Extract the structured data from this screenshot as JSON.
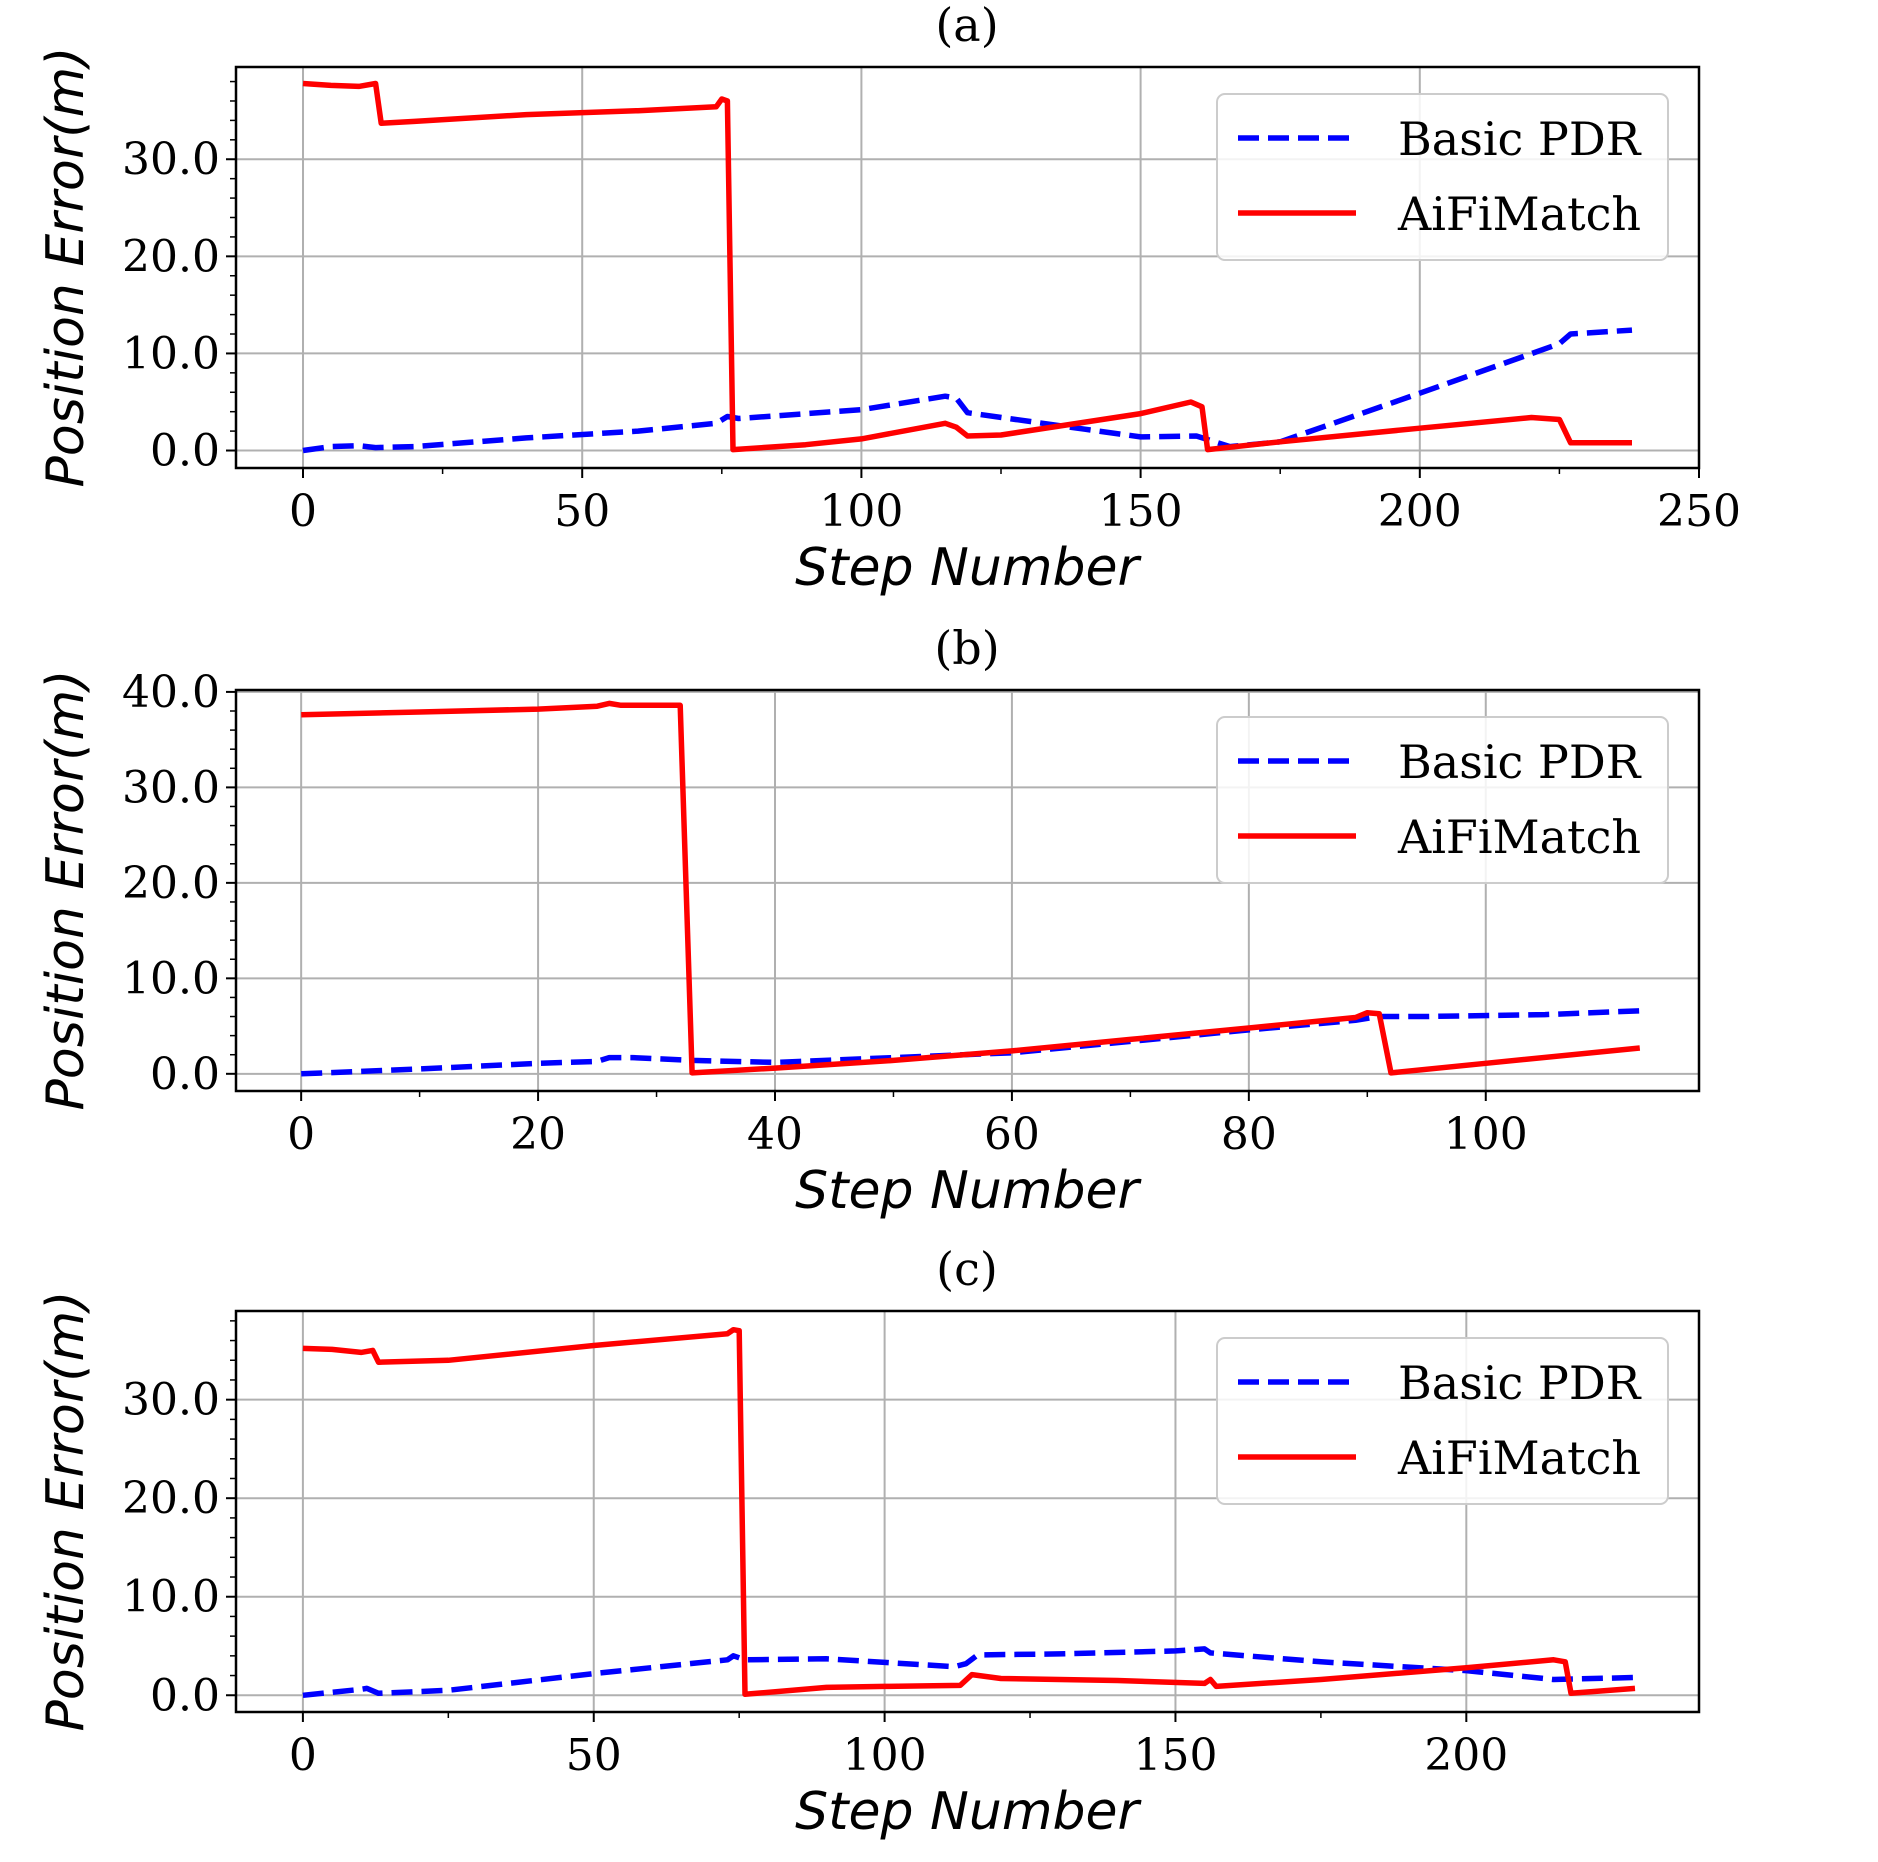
{
  "chart_data": [
    {
      "type": "line",
      "title": "(a)",
      "xlabel": "Step Number",
      "ylabel": "Position Error(m)",
      "xlim": [
        -12,
        250
      ],
      "ylim": [
        -1.8,
        39.5
      ],
      "xticks": [
        0,
        50,
        100,
        150,
        200,
        250
      ],
      "xtick_labels": [
        "0",
        "50",
        "100",
        "150",
        "200",
        "250"
      ],
      "yticks": [
        0,
        10,
        20,
        30
      ],
      "ytick_labels": [
        "0.0",
        "10.0",
        "20.0",
        "30.0"
      ],
      "grid": true,
      "legend_position": "upper-right",
      "series": [
        {
          "name": "Basic PDR",
          "color": "#0000ff",
          "style": "dashed",
          "points": [
            [
              0,
              0.0
            ],
            [
              5,
              0.4
            ],
            [
              10,
              0.5
            ],
            [
              13,
              0.3
            ],
            [
              20,
              0.4
            ],
            [
              40,
              1.3
            ],
            [
              60,
              2.0
            ],
            [
              74,
              2.8
            ],
            [
              76,
              3.5
            ],
            [
              78,
              3.3
            ],
            [
              100,
              4.2
            ],
            [
              115,
              5.6
            ],
            [
              117,
              5.4
            ],
            [
              119,
              3.9
            ],
            [
              140,
              2.2
            ],
            [
              150,
              1.4
            ],
            [
              160,
              1.5
            ],
            [
              166,
              0.4
            ],
            [
              175,
              0.9
            ],
            [
              200,
              5.9
            ],
            [
              225,
              11.0
            ],
            [
              227,
              12.0
            ],
            [
              238,
              12.4
            ]
          ]
        },
        {
          "name": "AiFiMatch",
          "color": "#ff0000",
          "style": "solid",
          "points": [
            [
              0,
              37.8
            ],
            [
              5,
              37.6
            ],
            [
              10,
              37.5
            ],
            [
              13,
              37.8
            ],
            [
              14,
              33.7
            ],
            [
              20,
              33.9
            ],
            [
              40,
              34.6
            ],
            [
              60,
              35.0
            ],
            [
              74,
              35.4
            ],
            [
              75,
              36.2
            ],
            [
              76,
              36.0
            ],
            [
              77,
              0.1
            ],
            [
              90,
              0.6
            ],
            [
              100,
              1.2
            ],
            [
              115,
              2.8
            ],
            [
              117,
              2.4
            ],
            [
              119,
              1.5
            ],
            [
              125,
              1.6
            ],
            [
              150,
              3.8
            ],
            [
              159,
              5.0
            ],
            [
              161,
              4.5
            ],
            [
              162,
              0.1
            ],
            [
              175,
              0.9
            ],
            [
              200,
              2.3
            ],
            [
              220,
              3.4
            ],
            [
              225,
              3.2
            ],
            [
              227,
              0.8
            ],
            [
              238,
              0.8
            ]
          ]
        }
      ]
    },
    {
      "type": "line",
      "title": "(b)",
      "xlabel": "Step Number",
      "ylabel": "Position Error(m)",
      "xlim": [
        -5.5,
        118
      ],
      "ylim": [
        -1.8,
        40.2
      ],
      "xticks": [
        0,
        20,
        40,
        60,
        80,
        100
      ],
      "xtick_labels": [
        "0",
        "20",
        "40",
        "60",
        "80",
        "100"
      ],
      "yticks": [
        0,
        10,
        20,
        30,
        40
      ],
      "ytick_labels": [
        "0.0",
        "10.0",
        "20.0",
        "30.0",
        "40.0"
      ],
      "grid": true,
      "legend_position": "upper-right",
      "series": [
        {
          "name": "Basic PDR",
          "color": "#0000ff",
          "style": "dashed",
          "points": [
            [
              0,
              0.0
            ],
            [
              10,
              0.5
            ],
            [
              20,
              1.1
            ],
            [
              25,
              1.3
            ],
            [
              26,
              1.7
            ],
            [
              28,
              1.7
            ],
            [
              33,
              1.4
            ],
            [
              40,
              1.2
            ],
            [
              50,
              1.7
            ],
            [
              60,
              2.2
            ],
            [
              70,
              3.4
            ],
            [
              80,
              4.6
            ],
            [
              89,
              5.6
            ],
            [
              91,
              6.0
            ],
            [
              95,
              6.0
            ],
            [
              105,
              6.2
            ],
            [
              113,
              6.6
            ]
          ]
        },
        {
          "name": "AiFiMatch",
          "color": "#ff0000",
          "style": "solid",
          "points": [
            [
              0,
              37.6
            ],
            [
              10,
              37.9
            ],
            [
              20,
              38.2
            ],
            [
              25,
              38.5
            ],
            [
              26,
              38.8
            ],
            [
              27,
              38.6
            ],
            [
              32,
              38.6
            ],
            [
              33,
              0.1
            ],
            [
              40,
              0.6
            ],
            [
              50,
              1.4
            ],
            [
              60,
              2.4
            ],
            [
              70,
              3.6
            ],
            [
              80,
              4.8
            ],
            [
              89,
              5.9
            ],
            [
              90,
              6.4
            ],
            [
              91,
              6.3
            ],
            [
              92,
              0.1
            ],
            [
              100,
              1.1
            ],
            [
              113,
              2.7
            ]
          ]
        }
      ]
    },
    {
      "type": "line",
      "title": "(c)",
      "xlabel": "Step Number",
      "ylabel": "Position Error(m)",
      "xlim": [
        -11.5,
        240
      ],
      "ylim": [
        -1.7,
        39.0
      ],
      "xticks": [
        0,
        50,
        100,
        150,
        200
      ],
      "xtick_labels": [
        "0",
        "50",
        "100",
        "150",
        "200"
      ],
      "yticks": [
        0,
        10,
        20,
        30
      ],
      "ytick_labels": [
        "0.0",
        "10.0",
        "20.0",
        "30.0"
      ],
      "grid": true,
      "legend_position": "upper-right",
      "series": [
        {
          "name": "Basic PDR",
          "color": "#0000ff",
          "style": "dashed",
          "points": [
            [
              0,
              0.0
            ],
            [
              10,
              0.6
            ],
            [
              11,
              0.7
            ],
            [
              13,
              0.2
            ],
            [
              25,
              0.5
            ],
            [
              50,
              2.2
            ],
            [
              73,
              3.6
            ],
            [
              74,
              4.0
            ],
            [
              76,
              3.6
            ],
            [
              90,
              3.7
            ],
            [
              112,
              2.9
            ],
            [
              114,
              3.2
            ],
            [
              116,
              4.1
            ],
            [
              130,
              4.2
            ],
            [
              150,
              4.5
            ],
            [
              155,
              4.7
            ],
            [
              156,
              4.3
            ],
            [
              175,
              3.4
            ],
            [
              200,
              2.5
            ],
            [
              215,
              1.6
            ],
            [
              229,
              1.8
            ]
          ]
        },
        {
          "name": "AiFiMatch",
          "color": "#ff0000",
          "style": "solid",
          "points": [
            [
              0,
              35.2
            ],
            [
              5,
              35.1
            ],
            [
              10,
              34.8
            ],
            [
              12,
              35.0
            ],
            [
              13,
              33.8
            ],
            [
              25,
              34.0
            ],
            [
              50,
              35.5
            ],
            [
              73,
              36.7
            ],
            [
              74,
              37.1
            ],
            [
              75,
              37.0
            ],
            [
              76,
              0.1
            ],
            [
              90,
              0.8
            ],
            [
              100,
              0.9
            ],
            [
              113,
              1.0
            ],
            [
              115,
              2.1
            ],
            [
              120,
              1.7
            ],
            [
              140,
              1.5
            ],
            [
              155,
              1.2
            ],
            [
              156,
              1.6
            ],
            [
              157,
              0.9
            ],
            [
              175,
              1.6
            ],
            [
              200,
              2.8
            ],
            [
              215,
              3.6
            ],
            [
              217,
              3.4
            ],
            [
              218,
              0.2
            ],
            [
              229,
              0.7
            ]
          ]
        }
      ]
    }
  ]
}
